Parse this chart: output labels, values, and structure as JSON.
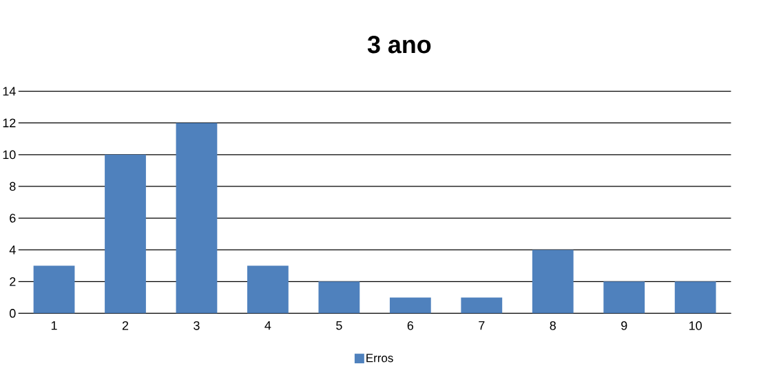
{
  "chart_data": {
    "type": "bar",
    "title": "3 ano",
    "categories": [
      "1",
      "2",
      "3",
      "4",
      "5",
      "6",
      "7",
      "8",
      "9",
      "10"
    ],
    "series": [
      {
        "name": "Erros",
        "color": "#4f81bd",
        "values": [
          3,
          10,
          12,
          3,
          2,
          1,
          1,
          4,
          2,
          2
        ]
      }
    ],
    "ylim": [
      0,
      14
    ],
    "yticks": [
      0,
      2,
      4,
      6,
      8,
      10,
      12,
      14
    ],
    "grid": "y",
    "legend": "bottom"
  }
}
